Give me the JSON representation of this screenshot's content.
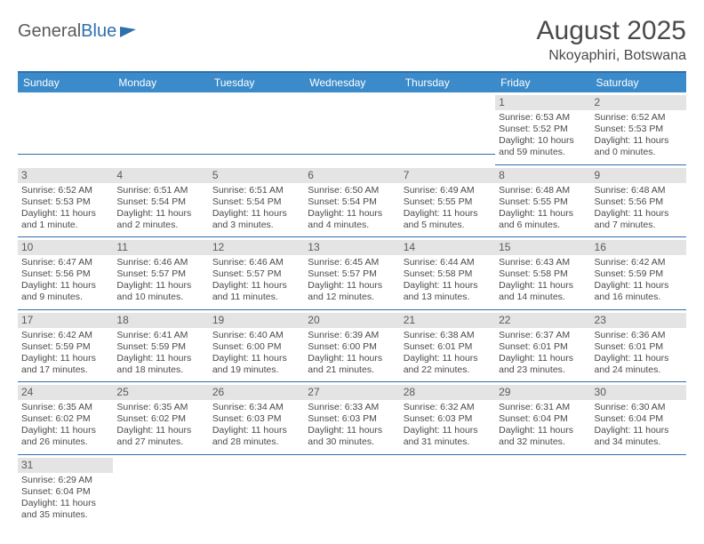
{
  "logo": {
    "text1": "General",
    "text2": "Blue"
  },
  "title": "August 2025",
  "location": "Nkoyaphiri, Botswana",
  "colors": {
    "header_bg": "#3b8bca",
    "rule": "#2f6fae",
    "daynum_bg": "#e4e4e4",
    "text": "#4a4a4a"
  },
  "dayHeaders": [
    "Sunday",
    "Monday",
    "Tuesday",
    "Wednesday",
    "Thursday",
    "Friday",
    "Saturday"
  ],
  "weeks": [
    [
      null,
      null,
      null,
      null,
      null,
      {
        "n": "1",
        "sr": "6:53 AM",
        "ss": "5:52 PM",
        "dl": "10 hours and 59 minutes."
      },
      {
        "n": "2",
        "sr": "6:52 AM",
        "ss": "5:53 PM",
        "dl": "11 hours and 0 minutes."
      }
    ],
    [
      {
        "n": "3",
        "sr": "6:52 AM",
        "ss": "5:53 PM",
        "dl": "11 hours and 1 minute."
      },
      {
        "n": "4",
        "sr": "6:51 AM",
        "ss": "5:54 PM",
        "dl": "11 hours and 2 minutes."
      },
      {
        "n": "5",
        "sr": "6:51 AM",
        "ss": "5:54 PM",
        "dl": "11 hours and 3 minutes."
      },
      {
        "n": "6",
        "sr": "6:50 AM",
        "ss": "5:54 PM",
        "dl": "11 hours and 4 minutes."
      },
      {
        "n": "7",
        "sr": "6:49 AM",
        "ss": "5:55 PM",
        "dl": "11 hours and 5 minutes."
      },
      {
        "n": "8",
        "sr": "6:48 AM",
        "ss": "5:55 PM",
        "dl": "11 hours and 6 minutes."
      },
      {
        "n": "9",
        "sr": "6:48 AM",
        "ss": "5:56 PM",
        "dl": "11 hours and 7 minutes."
      }
    ],
    [
      {
        "n": "10",
        "sr": "6:47 AM",
        "ss": "5:56 PM",
        "dl": "11 hours and 9 minutes."
      },
      {
        "n": "11",
        "sr": "6:46 AM",
        "ss": "5:57 PM",
        "dl": "11 hours and 10 minutes."
      },
      {
        "n": "12",
        "sr": "6:46 AM",
        "ss": "5:57 PM",
        "dl": "11 hours and 11 minutes."
      },
      {
        "n": "13",
        "sr": "6:45 AM",
        "ss": "5:57 PM",
        "dl": "11 hours and 12 minutes."
      },
      {
        "n": "14",
        "sr": "6:44 AM",
        "ss": "5:58 PM",
        "dl": "11 hours and 13 minutes."
      },
      {
        "n": "15",
        "sr": "6:43 AM",
        "ss": "5:58 PM",
        "dl": "11 hours and 14 minutes."
      },
      {
        "n": "16",
        "sr": "6:42 AM",
        "ss": "5:59 PM",
        "dl": "11 hours and 16 minutes."
      }
    ],
    [
      {
        "n": "17",
        "sr": "6:42 AM",
        "ss": "5:59 PM",
        "dl": "11 hours and 17 minutes."
      },
      {
        "n": "18",
        "sr": "6:41 AM",
        "ss": "5:59 PM",
        "dl": "11 hours and 18 minutes."
      },
      {
        "n": "19",
        "sr": "6:40 AM",
        "ss": "6:00 PM",
        "dl": "11 hours and 19 minutes."
      },
      {
        "n": "20",
        "sr": "6:39 AM",
        "ss": "6:00 PM",
        "dl": "11 hours and 21 minutes."
      },
      {
        "n": "21",
        "sr": "6:38 AM",
        "ss": "6:01 PM",
        "dl": "11 hours and 22 minutes."
      },
      {
        "n": "22",
        "sr": "6:37 AM",
        "ss": "6:01 PM",
        "dl": "11 hours and 23 minutes."
      },
      {
        "n": "23",
        "sr": "6:36 AM",
        "ss": "6:01 PM",
        "dl": "11 hours and 24 minutes."
      }
    ],
    [
      {
        "n": "24",
        "sr": "6:35 AM",
        "ss": "6:02 PM",
        "dl": "11 hours and 26 minutes."
      },
      {
        "n": "25",
        "sr": "6:35 AM",
        "ss": "6:02 PM",
        "dl": "11 hours and 27 minutes."
      },
      {
        "n": "26",
        "sr": "6:34 AM",
        "ss": "6:03 PM",
        "dl": "11 hours and 28 minutes."
      },
      {
        "n": "27",
        "sr": "6:33 AM",
        "ss": "6:03 PM",
        "dl": "11 hours and 30 minutes."
      },
      {
        "n": "28",
        "sr": "6:32 AM",
        "ss": "6:03 PM",
        "dl": "11 hours and 31 minutes."
      },
      {
        "n": "29",
        "sr": "6:31 AM",
        "ss": "6:04 PM",
        "dl": "11 hours and 32 minutes."
      },
      {
        "n": "30",
        "sr": "6:30 AM",
        "ss": "6:04 PM",
        "dl": "11 hours and 34 minutes."
      }
    ],
    [
      {
        "n": "31",
        "sr": "6:29 AM",
        "ss": "6:04 PM",
        "dl": "11 hours and 35 minutes."
      },
      null,
      null,
      null,
      null,
      null,
      null
    ]
  ],
  "labels": {
    "sunrise": "Sunrise:",
    "sunset": "Sunset:",
    "daylight": "Daylight:"
  }
}
